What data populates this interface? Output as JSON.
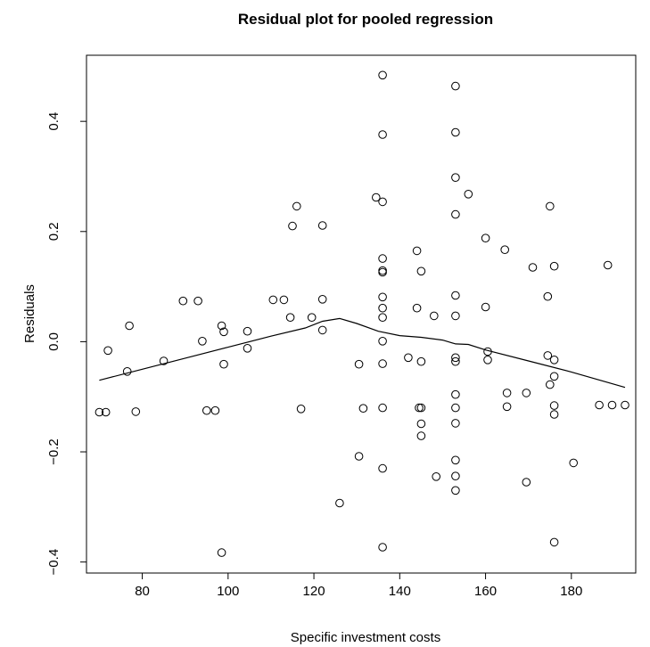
{
  "chart_data": {
    "type": "scatter",
    "title": "Residual plot for pooled regression",
    "xlabel": "Specific investment costs",
    "ylabel": "Residuals",
    "xlim": [
      67,
      195
    ],
    "ylim": [
      -0.42,
      0.52
    ],
    "xticks": [
      80,
      100,
      120,
      140,
      160,
      180
    ],
    "yticks": [
      -0.4,
      -0.2,
      0.0,
      0.2,
      0.4
    ],
    "xtick_labels": [
      "80",
      "100",
      "120",
      "140",
      "160",
      "180"
    ],
    "ytick_labels": [
      "−0.4",
      "−0.2",
      "0.0",
      "0.2",
      "0.4"
    ],
    "grid": false,
    "series": [
      {
        "marker": "open-circle",
        "points": [
          [
            70.0,
            -0.128
          ],
          [
            71.5,
            -0.128
          ],
          [
            72.0,
            -0.016
          ],
          [
            76.5,
            -0.054
          ],
          [
            77.0,
            0.029
          ],
          [
            78.5,
            -0.127
          ],
          [
            85.0,
            -0.035
          ],
          [
            89.5,
            0.074
          ],
          [
            93.0,
            0.074
          ],
          [
            94.0,
            0.001
          ],
          [
            95.0,
            -0.125
          ],
          [
            97.0,
            -0.125
          ],
          [
            98.5,
            0.029
          ],
          [
            98.5,
            -0.383
          ],
          [
            99.0,
            0.018
          ],
          [
            99.0,
            -0.041
          ],
          [
            104.5,
            0.019
          ],
          [
            104.5,
            -0.012
          ],
          [
            110.5,
            0.076
          ],
          [
            113.0,
            0.076
          ],
          [
            114.5,
            0.044
          ],
          [
            115.0,
            0.21
          ],
          [
            116.0,
            0.246
          ],
          [
            117.0,
            -0.122
          ],
          [
            119.5,
            0.044
          ],
          [
            122.0,
            0.211
          ],
          [
            122.0,
            0.077
          ],
          [
            122.0,
            0.021
          ],
          [
            126.0,
            -0.293
          ],
          [
            130.5,
            -0.041
          ],
          [
            130.5,
            -0.208
          ],
          [
            131.5,
            -0.121
          ],
          [
            134.5,
            0.262
          ],
          [
            136.0,
            0.484
          ],
          [
            136.0,
            0.376
          ],
          [
            136.0,
            0.254
          ],
          [
            136.0,
            0.151
          ],
          [
            136.0,
            0.129
          ],
          [
            136.0,
            0.126
          ],
          [
            136.0,
            0.081
          ],
          [
            136.0,
            0.061
          ],
          [
            136.0,
            0.044
          ],
          [
            136.0,
            0.001
          ],
          [
            136.0,
            -0.04
          ],
          [
            136.0,
            -0.12
          ],
          [
            136.0,
            -0.23
          ],
          [
            136.0,
            -0.373
          ],
          [
            142.0,
            -0.029
          ],
          [
            144.0,
            0.165
          ],
          [
            144.0,
            0.061
          ],
          [
            144.5,
            -0.12
          ],
          [
            145.0,
            0.128
          ],
          [
            145.0,
            -0.036
          ],
          [
            145.0,
            -0.12
          ],
          [
            145.0,
            -0.149
          ],
          [
            145.0,
            -0.171
          ],
          [
            148.0,
            0.047
          ],
          [
            148.5,
            -0.245
          ],
          [
            153.0,
            0.464
          ],
          [
            153.0,
            0.38
          ],
          [
            153.0,
            0.298
          ],
          [
            153.0,
            0.231
          ],
          [
            153.0,
            0.084
          ],
          [
            153.0,
            0.047
          ],
          [
            153.0,
            -0.029
          ],
          [
            153.0,
            -0.036
          ],
          [
            153.0,
            -0.096
          ],
          [
            153.0,
            -0.12
          ],
          [
            153.0,
            -0.148
          ],
          [
            153.0,
            -0.215
          ],
          [
            153.0,
            -0.244
          ],
          [
            153.0,
            -0.27
          ],
          [
            156.0,
            0.268
          ],
          [
            160.0,
            0.188
          ],
          [
            160.0,
            0.063
          ],
          [
            160.5,
            -0.018
          ],
          [
            160.5,
            -0.033
          ],
          [
            164.5,
            0.167
          ],
          [
            165.0,
            -0.093
          ],
          [
            165.0,
            -0.118
          ],
          [
            169.5,
            -0.093
          ],
          [
            169.5,
            -0.255
          ],
          [
            171.0,
            0.135
          ],
          [
            174.5,
            0.082
          ],
          [
            174.5,
            -0.025
          ],
          [
            175.0,
            0.246
          ],
          [
            175.0,
            -0.078
          ],
          [
            176.0,
            0.137
          ],
          [
            176.0,
            -0.033
          ],
          [
            176.0,
            -0.063
          ],
          [
            176.0,
            -0.116
          ],
          [
            176.0,
            -0.132
          ],
          [
            176.0,
            -0.364
          ],
          [
            180.5,
            -0.22
          ],
          [
            186.5,
            -0.115
          ],
          [
            188.5,
            0.139
          ],
          [
            189.5,
            -0.115
          ],
          [
            192.5,
            -0.115
          ]
        ]
      },
      {
        "marker": "line",
        "points": [
          [
            70.0,
            -0.07
          ],
          [
            80.0,
            -0.05
          ],
          [
            90.0,
            -0.03
          ],
          [
            100.0,
            -0.01
          ],
          [
            110.0,
            0.01
          ],
          [
            118.0,
            0.025
          ],
          [
            122.0,
            0.037
          ],
          [
            126.0,
            0.042
          ],
          [
            130.0,
            0.033
          ],
          [
            135.0,
            0.019
          ],
          [
            140.0,
            0.011
          ],
          [
            145.0,
            0.008
          ],
          [
            150.0,
            0.003
          ],
          [
            153.0,
            -0.004
          ],
          [
            156.0,
            -0.005
          ],
          [
            160.0,
            -0.015
          ],
          [
            170.0,
            -0.035
          ],
          [
            180.0,
            -0.055
          ],
          [
            192.5,
            -0.083
          ]
        ]
      }
    ]
  }
}
